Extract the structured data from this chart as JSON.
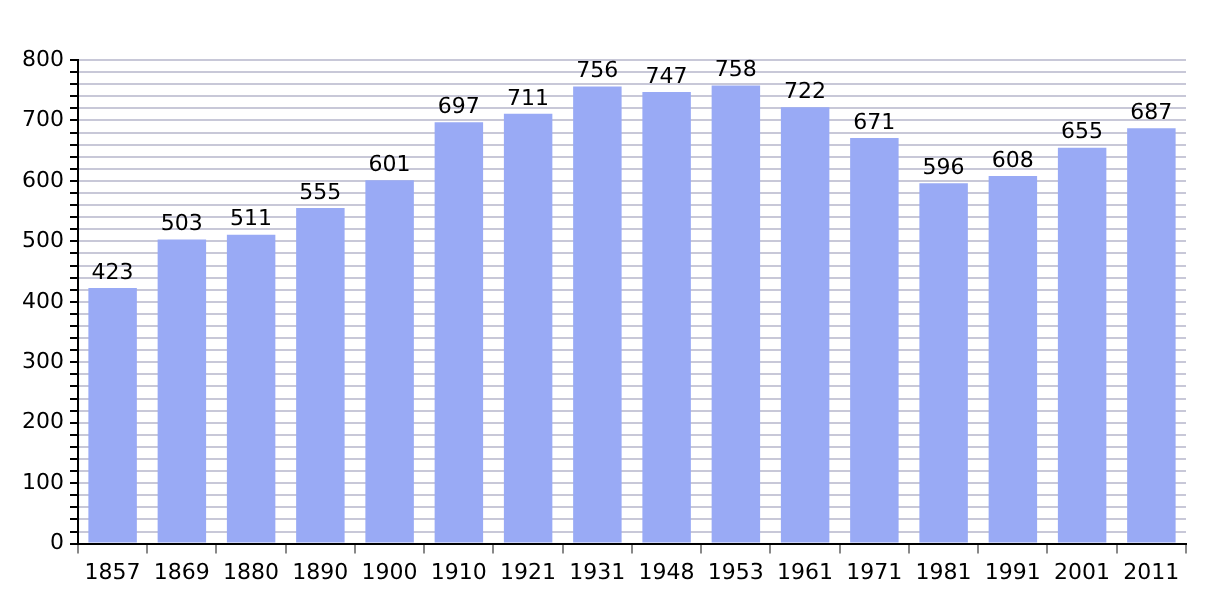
{
  "chart_data": {
    "type": "bar",
    "categories": [
      "1857",
      "1869",
      "1880",
      "1890",
      "1900",
      "1910",
      "1921",
      "1931",
      "1948",
      "1953",
      "1961",
      "1971",
      "1981",
      "1991",
      "2001",
      "2011"
    ],
    "values": [
      423,
      503,
      511,
      555,
      601,
      697,
      711,
      756,
      747,
      758,
      722,
      671,
      596,
      608,
      655,
      687
    ],
    "color": "#99aaf5",
    "ylim": [
      0,
      800
    ],
    "yticks": [
      0,
      {
        "value": 20,
        "label": null
      },
      {
        "value": 40,
        "label": null
      },
      {
        "value": 60,
        "label": null
      },
      {
        "value": 80,
        "label": null
      },
      100,
      {
        "value": 120,
        "label": null
      },
      {
        "value": 140,
        "label": null
      },
      {
        "value": 160,
        "label": null
      },
      {
        "value": 180,
        "label": null
      },
      200,
      {
        "value": 220,
        "label": null
      },
      {
        "value": 240,
        "label": null
      },
      {
        "value": 260,
        "label": null
      },
      {
        "value": 280,
        "label": null
      },
      300,
      {
        "value": 320,
        "label": null
      },
      {
        "value": 340,
        "label": null
      },
      {
        "value": 360,
        "label": null
      },
      {
        "value": 380,
        "label": null
      },
      400,
      {
        "value": 420,
        "label": null
      },
      {
        "value": 440,
        "label": null
      },
      {
        "value": 460,
        "label": null
      },
      {
        "value": 480,
        "label": null
      },
      500,
      {
        "value": 520,
        "label": null
      },
      {
        "value": 540,
        "label": null
      },
      {
        "value": 560,
        "label": null
      },
      {
        "value": 580,
        "label": null
      },
      600,
      {
        "value": 620,
        "label": null
      },
      {
        "value": 640,
        "label": null
      },
      {
        "value": 660,
        "label": null
      },
      {
        "value": 680,
        "label": null
      },
      700,
      {
        "value": 720,
        "label": null
      },
      {
        "value": 740,
        "label": null
      },
      {
        "value": 760,
        "label": null
      },
      {
        "value": 780,
        "label": null
      },
      800
    ],
    "grid": "y",
    "data_labels": true
  }
}
